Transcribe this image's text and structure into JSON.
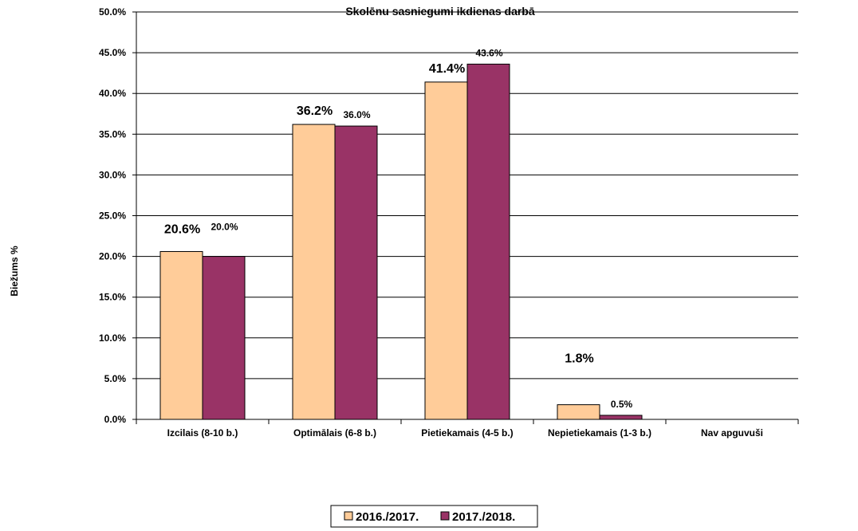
{
  "chart_data": {
    "type": "bar",
    "title": "Skolēnu sasniegumi ikdienas darbā",
    "ylabel": "Biežums %",
    "xlabel": "",
    "ylim": [
      0,
      50
    ],
    "y_ticks": [
      "0.0%",
      "5.0%",
      "10.0%",
      "15.0%",
      "20.0%",
      "25.0%",
      "30.0%",
      "35.0%",
      "40.0%",
      "45.0%",
      "50.0%"
    ],
    "categories": [
      "Izcilais (8-10 b.)",
      "Optimālais (6-8 b.)",
      "Pietiekamais (4-5 b.)",
      "Nepietiekamais (1-3 b.)",
      "Nav apguvuši"
    ],
    "series": [
      {
        "name": "2016./2017.",
        "color": "#FFCC99",
        "values": [
          20.6,
          36.2,
          41.4,
          1.8,
          null
        ],
        "labels": [
          "20.6%",
          "36.2%",
          "41.4%",
          "1.8%",
          ""
        ]
      },
      {
        "name": "2017./2018.",
        "color": "#993366",
        "values": [
          20.0,
          36.0,
          43.6,
          0.5,
          null
        ],
        "labels": [
          "20.0%",
          "36.0%",
          "43.6%",
          "0.5%",
          ""
        ]
      }
    ],
    "grid": true,
    "legend_position": "bottom"
  }
}
